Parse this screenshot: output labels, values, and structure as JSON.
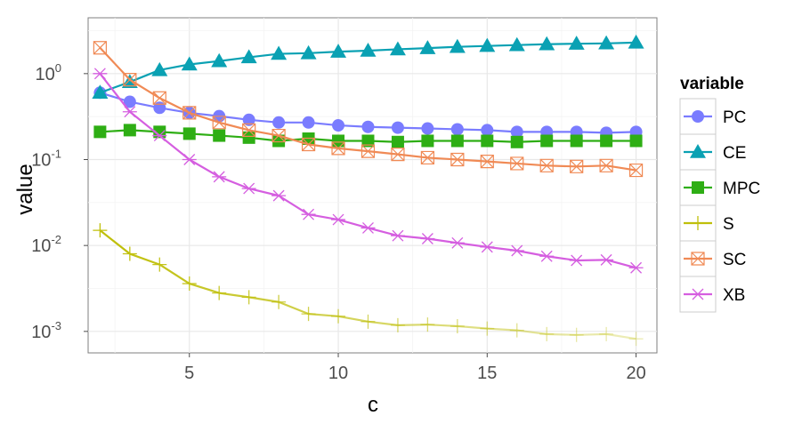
{
  "chart_data": {
    "type": "line",
    "xlabel": "c",
    "ylabel": "value",
    "yscale": "log10",
    "xlim": [
      1.6,
      20.7
    ],
    "ylim_log10": [
      -3.25,
      0.65
    ],
    "x_ticks": [
      5,
      10,
      15,
      20
    ],
    "y_ticks": [
      {
        "exp": 0,
        "base": "10",
        "power": "0"
      },
      {
        "exp": -1,
        "base": "10",
        "power": "-1"
      },
      {
        "exp": -2,
        "base": "10",
        "power": "-2"
      },
      {
        "exp": -3,
        "base": "10",
        "power": "-3"
      }
    ],
    "legend_title": "variable",
    "x": [
      2,
      3,
      4,
      5,
      6,
      7,
      8,
      9,
      10,
      11,
      12,
      13,
      14,
      15,
      16,
      17,
      18,
      19,
      20
    ],
    "series": [
      {
        "name": "PC",
        "color": "#7a7cff",
        "marker": "circle",
        "values": [
          0.6,
          0.47,
          0.4,
          0.35,
          0.32,
          0.29,
          0.27,
          0.27,
          0.25,
          0.24,
          0.235,
          0.23,
          0.225,
          0.22,
          0.21,
          0.21,
          0.21,
          0.205,
          0.21
        ]
      },
      {
        "name": "CE",
        "color": "#0aa1b3",
        "marker": "triangle",
        "values": [
          0.6,
          0.8,
          1.1,
          1.28,
          1.4,
          1.55,
          1.7,
          1.73,
          1.8,
          1.85,
          1.92,
          1.98,
          2.05,
          2.1,
          2.15,
          2.2,
          2.23,
          2.25,
          2.3
        ]
      },
      {
        "name": "MPC",
        "color": "#2eae14",
        "marker": "square",
        "values": [
          0.21,
          0.22,
          0.21,
          0.2,
          0.19,
          0.18,
          0.165,
          0.175,
          0.165,
          0.165,
          0.16,
          0.165,
          0.165,
          0.165,
          0.16,
          0.165,
          0.165,
          0.165,
          0.165
        ]
      },
      {
        "name": "S",
        "color": "#bfbf0a",
        "marker": "plus",
        "fade": true,
        "values": [
          0.015,
          0.008,
          0.006,
          0.0036,
          0.0028,
          0.0025,
          0.0022,
          0.0016,
          0.0015,
          0.0013,
          0.00118,
          0.0012,
          0.00115,
          0.00108,
          0.00103,
          0.00093,
          0.00091,
          0.00093,
          0.00082
        ]
      },
      {
        "name": "SC",
        "color": "#f08a55",
        "marker": "boxx",
        "values": [
          2.0,
          0.85,
          0.52,
          0.35,
          0.27,
          0.22,
          0.19,
          0.15,
          0.135,
          0.125,
          0.115,
          0.105,
          0.1,
          0.095,
          0.09,
          0.085,
          0.083,
          0.085,
          0.075
        ]
      },
      {
        "name": "XB",
        "color": "#d55ee0",
        "marker": "star",
        "values": [
          1.0,
          0.36,
          0.19,
          0.1,
          0.063,
          0.046,
          0.038,
          0.023,
          0.02,
          0.016,
          0.013,
          0.012,
          0.0107,
          0.0096,
          0.0087,
          0.0075,
          0.0067,
          0.0068,
          0.0055
        ]
      }
    ]
  }
}
